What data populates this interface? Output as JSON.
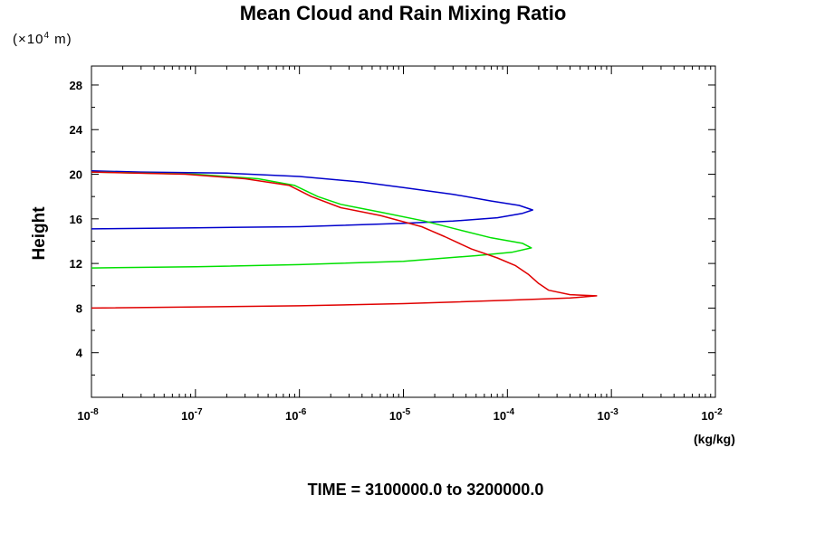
{
  "chart_data": {
    "type": "line",
    "title": "Mean Cloud and Rain Mixing Ratio",
    "ylabel": "Height",
    "y_unit_prefix": "(×10",
    "y_unit_exp": "4",
    "y_unit_suffix": " m)",
    "x_unit": "(kg/kg)",
    "footer": "TIME = 3100000.0 to 3200000.0",
    "xscale": "log",
    "xlim": [
      1e-08,
      0.01
    ],
    "ylim": [
      0,
      29.7
    ],
    "grid": false,
    "x_ticks": [
      {
        "value": 1e-08,
        "base": "10",
        "exp": "-8"
      },
      {
        "value": 1e-07,
        "base": "10",
        "exp": "-7"
      },
      {
        "value": 1e-06,
        "base": "10",
        "exp": "-6"
      },
      {
        "value": 1e-05,
        "base": "10",
        "exp": "-5"
      },
      {
        "value": 0.0001,
        "base": "10",
        "exp": "-4"
      },
      {
        "value": 0.001,
        "base": "10",
        "exp": "-3"
      },
      {
        "value": 0.01,
        "base": "10",
        "exp": "-2"
      }
    ],
    "y_ticks": [
      {
        "value": 4,
        "label": "4"
      },
      {
        "value": 8,
        "label": "8"
      },
      {
        "value": 12,
        "label": "12"
      },
      {
        "value": 16,
        "label": "16"
      },
      {
        "value": 20,
        "label": "20"
      },
      {
        "value": 24,
        "label": "24"
      },
      {
        "value": 28,
        "label": "28"
      }
    ],
    "series": [
      {
        "color": "#0000cc",
        "points": [
          [
            1e-08,
            15.1
          ],
          [
            1e-07,
            15.2
          ],
          [
            1e-06,
            15.3
          ],
          [
            1e-05,
            15.6
          ],
          [
            3e-05,
            15.8
          ],
          [
            8e-05,
            16.1
          ],
          [
            0.00014,
            16.5
          ],
          [
            0.000175,
            16.8
          ],
          [
            0.00013,
            17.2
          ],
          [
            7e-05,
            17.6
          ],
          [
            3e-05,
            18.2
          ],
          [
            1e-05,
            18.8
          ],
          [
            4e-06,
            19.3
          ],
          [
            1e-06,
            19.8
          ],
          [
            2e-07,
            20.1
          ],
          [
            3e-08,
            20.2
          ],
          [
            1e-08,
            20.3
          ]
        ]
      },
      {
        "color": "#00e000",
        "points": [
          [
            1e-08,
            11.6
          ],
          [
            1e-07,
            11.7
          ],
          [
            1e-06,
            11.9
          ],
          [
            1e-05,
            12.2
          ],
          [
            5e-05,
            12.7
          ],
          [
            0.00011,
            13.0
          ],
          [
            0.00017,
            13.4
          ],
          [
            0.00014,
            13.8
          ],
          [
            7e-05,
            14.3
          ],
          [
            3.5e-05,
            15.0
          ],
          [
            1.6e-05,
            15.8
          ],
          [
            6e-06,
            16.6
          ],
          [
            2.5e-06,
            17.3
          ],
          [
            1.5e-06,
            18.0
          ],
          [
            9e-07,
            19.0
          ],
          [
            4e-07,
            19.6
          ],
          [
            1e-07,
            20.0
          ],
          [
            1e-08,
            20.2
          ]
        ]
      },
      {
        "color": "#e00000",
        "points": [
          [
            1e-08,
            8.0
          ],
          [
            1e-06,
            8.2
          ],
          [
            1e-05,
            8.4
          ],
          [
            0.0001,
            8.7
          ],
          [
            0.0004,
            8.9
          ],
          [
            0.00072,
            9.1
          ],
          [
            0.0004,
            9.2
          ],
          [
            0.00025,
            9.6
          ],
          [
            0.0002,
            10.2
          ],
          [
            0.00016,
            11.0
          ],
          [
            0.00012,
            11.8
          ],
          [
            8e-05,
            12.5
          ],
          [
            4.5e-05,
            13.3
          ],
          [
            2.5e-05,
            14.4
          ],
          [
            1.5e-05,
            15.3
          ],
          [
            6e-06,
            16.3
          ],
          [
            2.5e-06,
            17.0
          ],
          [
            1.3e-06,
            18.0
          ],
          [
            8e-07,
            19.0
          ],
          [
            3e-07,
            19.6
          ],
          [
            8e-08,
            20.0
          ],
          [
            1e-08,
            20.2
          ]
        ]
      }
    ]
  }
}
